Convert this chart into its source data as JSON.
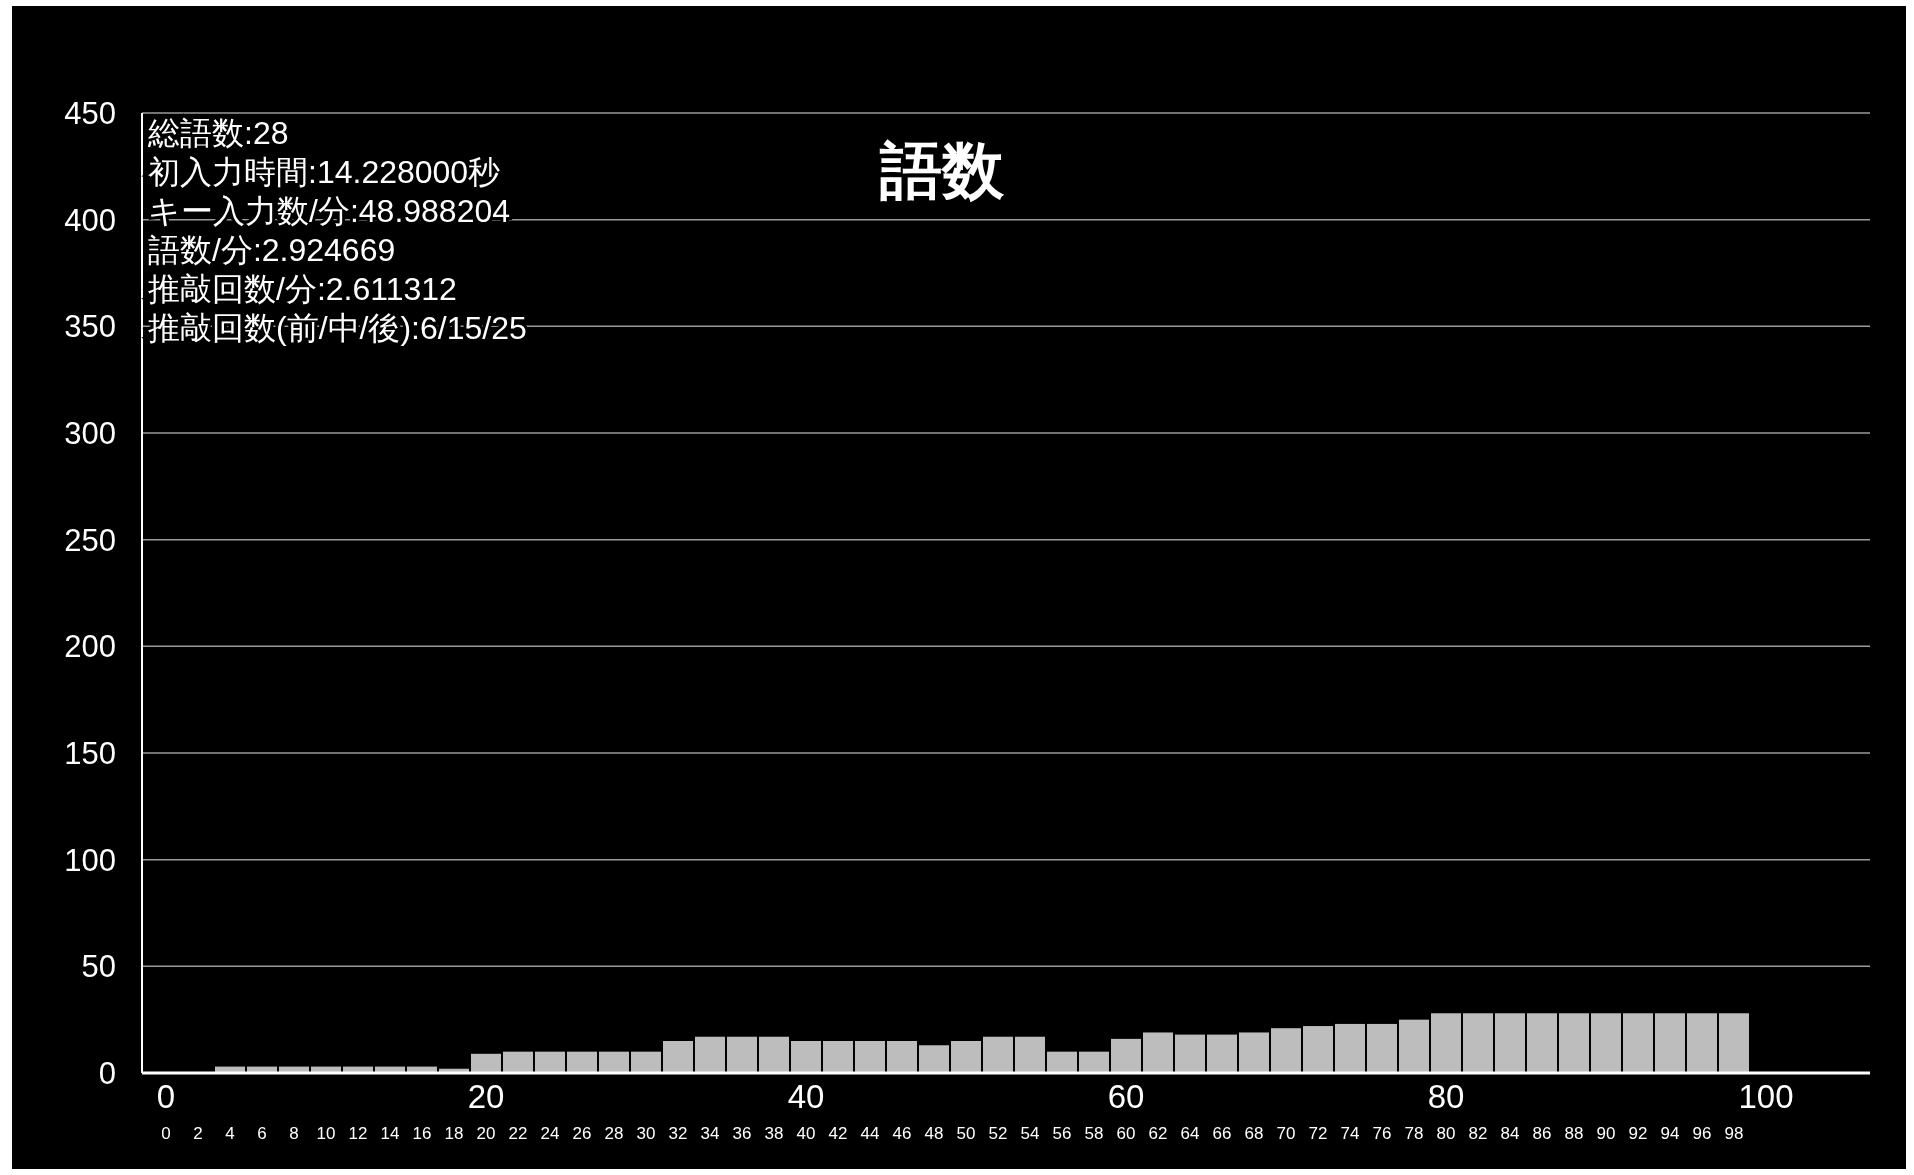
{
  "chart_data": {
    "type": "bar",
    "title": "語数",
    "annotations": [
      "総語数:28",
      "初入力時間:14.228000秒",
      "キー入力数/分:48.988204",
      "語数/分:2.924669",
      "推敲回数/分:2.611312",
      "推敲回数(前/中/後):6/15/25"
    ],
    "x": [
      0,
      2,
      4,
      6,
      8,
      10,
      12,
      14,
      16,
      18,
      20,
      22,
      24,
      26,
      28,
      30,
      32,
      34,
      36,
      38,
      40,
      42,
      44,
      46,
      48,
      50,
      52,
      54,
      56,
      58,
      60,
      62,
      64,
      66,
      68,
      70,
      72,
      74,
      76,
      78,
      80,
      82,
      84,
      86,
      88,
      90,
      92,
      94,
      96,
      98
    ],
    "values": [
      0,
      0,
      3,
      3,
      3,
      3,
      3,
      3,
      3,
      2,
      9,
      10,
      10,
      10,
      10,
      10,
      15,
      17,
      17,
      17,
      15,
      15,
      15,
      15,
      13,
      15,
      17,
      17,
      10,
      10,
      16,
      19,
      18,
      18,
      19,
      21,
      22,
      23,
      23,
      25,
      28,
      28,
      28,
      28,
      28,
      28,
      28,
      28,
      28,
      28
    ],
    "color": "#bdbdbd",
    "xlim": [
      -1.5,
      106.5
    ],
    "xticks": [
      0,
      20,
      40,
      60,
      80,
      100
    ],
    "x2lim": [
      -1.5,
      106.5
    ],
    "x2ticks": [
      0,
      2,
      4,
      6,
      8,
      10,
      12,
      14,
      16,
      18,
      20,
      22,
      24,
      26,
      28,
      30,
      32,
      34,
      36,
      38,
      40,
      42,
      44,
      46,
      48,
      50,
      52,
      54,
      56,
      58,
      60,
      62,
      64,
      66,
      68,
      70,
      72,
      74,
      76,
      78,
      80,
      82,
      84,
      86,
      88,
      90,
      92,
      94,
      96,
      98
    ],
    "ylim": [
      0,
      450
    ],
    "yticks": [
      0,
      50,
      100,
      150,
      200,
      250,
      300,
      350,
      400,
      450
    ],
    "grid": "y"
  }
}
